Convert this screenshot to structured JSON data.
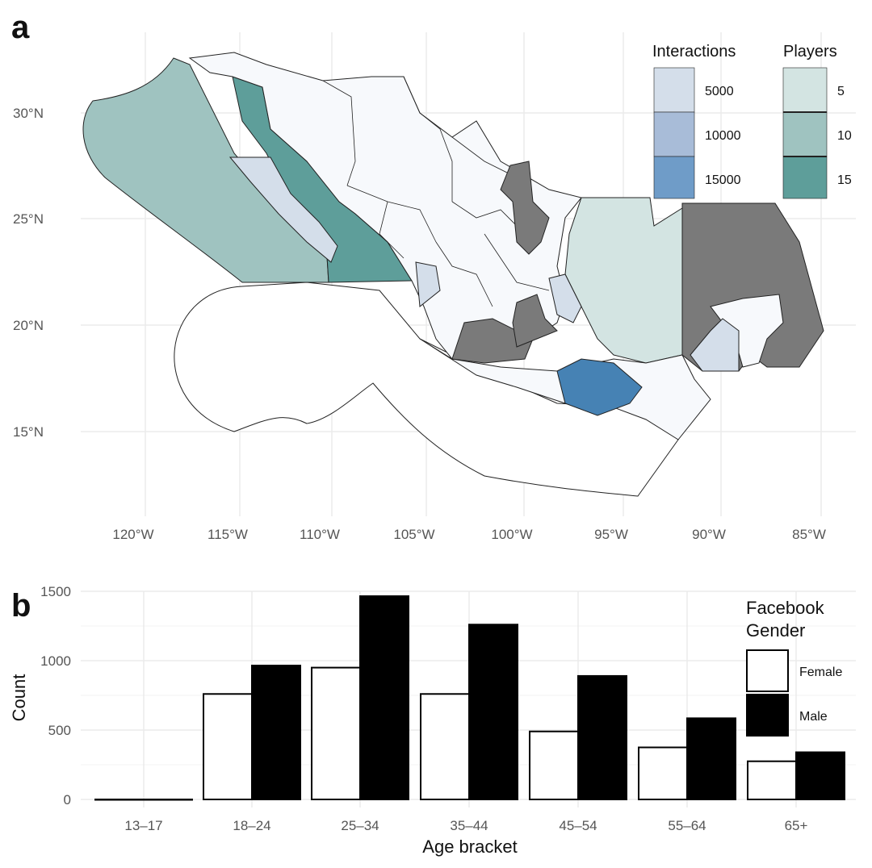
{
  "panels": {
    "a": "a",
    "b": "b"
  },
  "colors": {
    "grid": "#ebebeb",
    "region_default": "#f7f9fc",
    "no_data": "#7a7a7a",
    "interactions": [
      "#d4deea",
      "#a8bcd8",
      "#6f9cc8",
      "#4682b4"
    ],
    "players": [
      "#d3e4e2",
      "#9fc3c0",
      "#5e9e9a"
    ],
    "female": "#ffffff",
    "male": "#000000"
  },
  "map": {
    "lon_ticks": [
      "120°W",
      "115°W",
      "110°W",
      "105°W",
      "100°W",
      "95°W",
      "90°W",
      "85°W"
    ],
    "lat_ticks": [
      "30°N",
      "25°N",
      "20°N",
      "15°N"
    ],
    "legend_interactions": {
      "title": "Interactions",
      "labels": [
        "5000",
        "10000",
        "15000"
      ]
    },
    "legend_players": {
      "title": "Players",
      "labels": [
        "5",
        "10",
        "15"
      ]
    }
  },
  "chart_data": {
    "type": "bar",
    "categories": [
      "13–17",
      "18–24",
      "25–34",
      "35–44",
      "45–54",
      "55–64",
      "65+"
    ],
    "series": [
      {
        "name": "Female",
        "values": [
          0,
          760,
          950,
          760,
          490,
          375,
          275
        ]
      },
      {
        "name": "Male",
        "values": [
          0,
          965,
          1465,
          1260,
          890,
          585,
          340
        ]
      }
    ],
    "title": "",
    "xlabel": "Age bracket",
    "ylabel": "Count",
    "yticks": [
      "0",
      "500",
      "1000",
      "1500"
    ],
    "ylim": [
      0,
      1500
    ],
    "legend_title": [
      "Facebook",
      "Gender"
    ],
    "legend_position": "right"
  }
}
